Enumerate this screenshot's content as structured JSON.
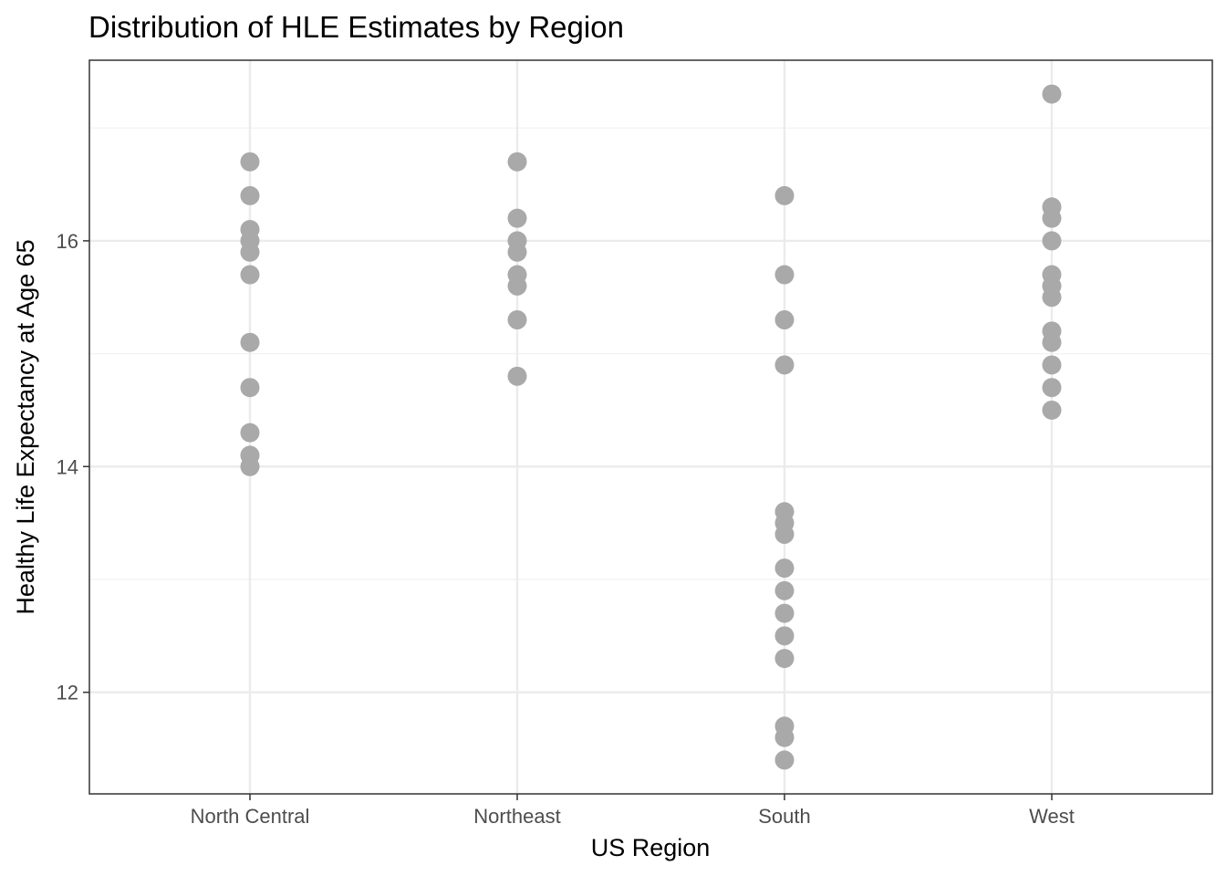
{
  "chart_data": {
    "type": "scatter",
    "title": "Distribution of HLE Estimates by Region",
    "xlabel": "US Region",
    "ylabel": "Healthy Life Expectancy at Age 65",
    "categories": [
      "North Central",
      "Northeast",
      "South",
      "West"
    ],
    "ylim": [
      11.1,
      17.6
    ],
    "yticks": [
      12,
      14,
      16
    ],
    "grid": true,
    "point_color": "#a9a9a9",
    "points": [
      {
        "x": "North Central",
        "y": [
          16.7,
          16.4,
          16.1,
          16.0,
          15.9,
          15.7,
          15.1,
          14.7,
          14.3,
          14.1,
          14.0
        ]
      },
      {
        "x": "Northeast",
        "y": [
          16.7,
          16.2,
          16.0,
          15.9,
          15.7,
          15.6,
          15.3,
          14.8
        ]
      },
      {
        "x": "South",
        "y": [
          16.4,
          15.7,
          15.3,
          14.9,
          13.6,
          13.5,
          13.4,
          13.1,
          12.9,
          12.7,
          12.5,
          12.3,
          11.7,
          11.6,
          11.4
        ]
      },
      {
        "x": "West",
        "y": [
          17.3,
          16.3,
          16.2,
          16.0,
          15.7,
          15.6,
          15.5,
          15.2,
          15.1,
          14.9,
          14.7,
          14.5
        ]
      }
    ]
  }
}
